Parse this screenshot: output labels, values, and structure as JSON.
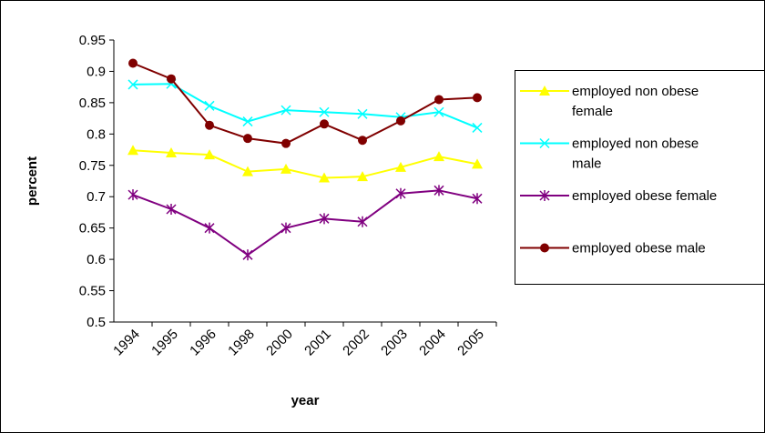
{
  "chart_data": {
    "type": "line",
    "x_label": "year",
    "y_label": "percent",
    "categories": [
      "1994",
      "1995",
      "1996",
      "1998",
      "2000",
      "2001",
      "2002",
      "2003",
      "2004",
      "2005"
    ],
    "ylim": [
      0.5,
      0.95
    ],
    "yticks": [
      {
        "value": 0.5,
        "label": "0.5"
      },
      {
        "value": 0.55,
        "label": "0.55"
      },
      {
        "value": 0.6,
        "label": "0.6"
      },
      {
        "value": 0.65,
        "label": "0.65"
      },
      {
        "value": 0.7,
        "label": "0.7"
      },
      {
        "value": 0.75,
        "label": "0.75"
      },
      {
        "value": 0.8,
        "label": "0.8"
      },
      {
        "value": 0.85,
        "label": "0.85"
      },
      {
        "value": 0.9,
        "label": "0.9"
      },
      {
        "value": 0.95,
        "label": "0.95"
      }
    ],
    "legend": "right",
    "series": [
      {
        "name": "employed non obese female",
        "color": "#ffff00",
        "marker": "triangle",
        "values": [
          0.774,
          0.77,
          0.767,
          0.74,
          0.744,
          0.73,
          0.732,
          0.747,
          0.764,
          0.752
        ]
      },
      {
        "name": "employed non obese male",
        "color": "#00ffff",
        "marker": "x",
        "values": [
          0.879,
          0.88,
          0.845,
          0.82,
          0.838,
          0.835,
          0.832,
          0.827,
          0.835,
          0.81
        ]
      },
      {
        "name": "employed obese female",
        "color": "#800080",
        "marker": "star",
        "values": [
          0.703,
          0.68,
          0.65,
          0.607,
          0.65,
          0.665,
          0.66,
          0.705,
          0.71,
          0.697
        ]
      },
      {
        "name": "employed obese male",
        "color": "#800000",
        "marker": "circle",
        "values": [
          0.913,
          0.888,
          0.814,
          0.793,
          0.785,
          0.816,
          0.79,
          0.821,
          0.855,
          0.858
        ]
      }
    ]
  }
}
